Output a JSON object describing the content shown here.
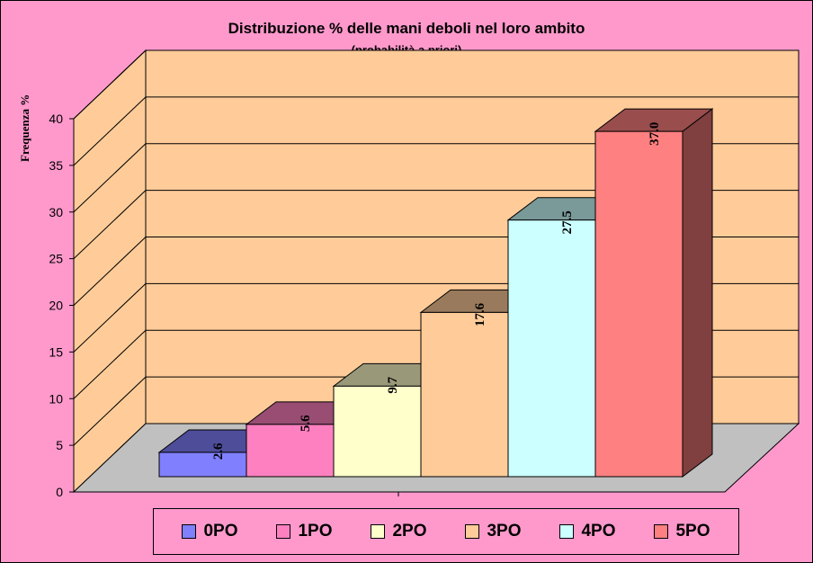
{
  "chart_data": {
    "type": "bar",
    "title": "Distribuzione % delle mani deboli nel loro ambito",
    "subtitle": "(probabilità a priori)",
    "ylabel": "Frequenza %",
    "xlabel": "",
    "ylim": [
      0,
      40
    ],
    "yticks": [
      "0",
      "5",
      "10",
      "15",
      "20",
      "25",
      "30",
      "35",
      "40"
    ],
    "grid": true,
    "legend_position": "bottom",
    "series": [
      {
        "name": "0PO",
        "value": 2.6,
        "label": "2.6",
        "color": "#8080ff"
      },
      {
        "name": "1PO",
        "value": 5.6,
        "label": "5.6",
        "color": "#ff80c0"
      },
      {
        "name": "2PO",
        "value": 9.7,
        "label": "9.7",
        "color": "#ffffcc"
      },
      {
        "name": "3PO",
        "value": 17.6,
        "label": "17.6",
        "color": "#ffcc99"
      },
      {
        "name": "4PO",
        "value": 27.5,
        "label": "27.5",
        "color": "#ccffff"
      },
      {
        "name": "5PO",
        "value": 37.0,
        "label": "37.0",
        "color": "#ff8080"
      }
    ],
    "colors": {
      "background": "#ff99cc",
      "wall": "#ffcc99",
      "floor": "#c0c0c0"
    }
  }
}
